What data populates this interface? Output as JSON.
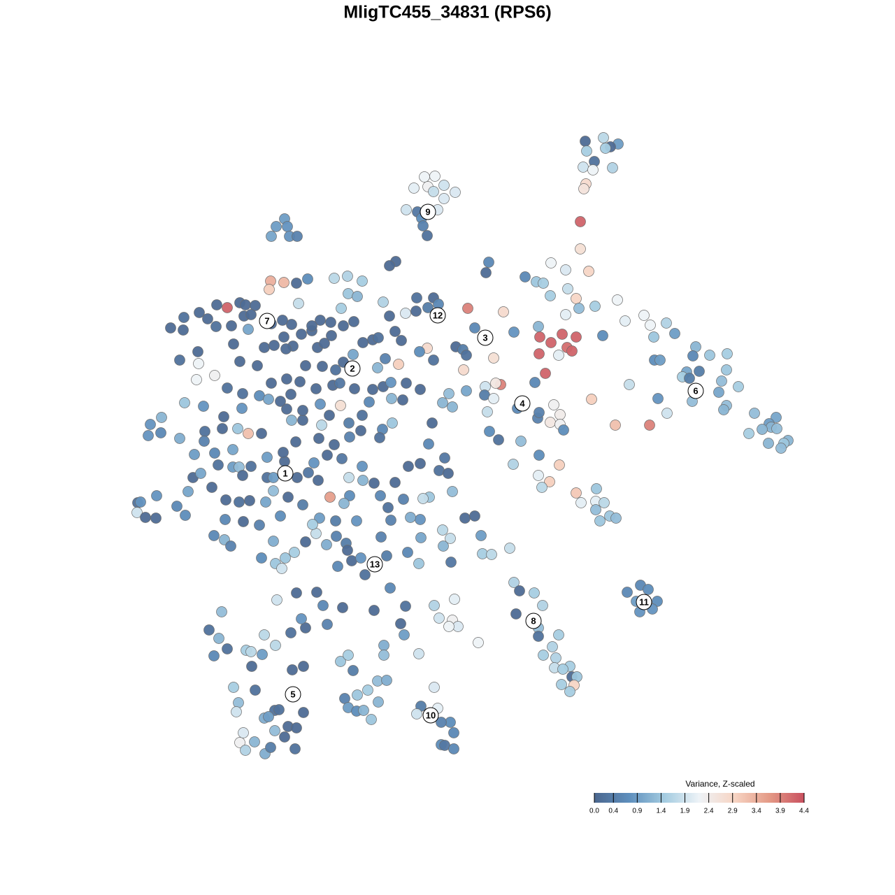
{
  "chart_data": {
    "type": "scatter",
    "title": "MligTC455_34831 (RPS6)",
    "xlim": [
      180,
      1140
    ],
    "ylim": [
      1090,
      190
    ],
    "colorbar_label": "Variance, Z-scaled",
    "clim": [
      0,
      4.4
    ],
    "cticks": [
      {
        "value": 0,
        "label": "0.0"
      },
      0.4,
      0.9,
      1.4,
      1.9,
      2.4,
      2.9,
      3.4,
      3.9,
      4.4
    ],
    "colormap": [
      "#4b678f",
      "#5e8fbd",
      "#a3cbe0",
      "#eef3f7",
      "#f7d5c4",
      "#e49a86",
      "#c9505f"
    ],
    "annotations": [
      {
        "text": "1",
        "x": 408,
        "y": 677
      },
      {
        "text": "2",
        "x": 504,
        "y": 527
      },
      {
        "text": "3",
        "x": 694,
        "y": 483
      },
      {
        "text": "4",
        "x": 747,
        "y": 577
      },
      {
        "text": "5",
        "x": 419,
        "y": 993
      },
      {
        "text": "6",
        "x": 995,
        "y": 559
      },
      {
        "text": "7",
        "x": 382,
        "y": 459
      },
      {
        "text": "8",
        "x": 763,
        "y": 888
      },
      {
        "text": "9",
        "x": 612,
        "y": 303
      },
      {
        "text": "10",
        "x": 616,
        "y": 1023
      },
      {
        "text": "11",
        "x": 921,
        "y": 861
      },
      {
        "text": "12",
        "x": 626,
        "y": 451
      },
      {
        "text": "13",
        "x": 536,
        "y": 807
      }
    ],
    "x": [
      607,
      622,
      592,
      612,
      635,
      651,
      620,
      635,
      581,
      597,
      626,
      603,
      605,
      611,
      863,
      837,
      884,
      873,
      866,
      839,
      850,
      834,
      848,
      876,
      838,
      835,
      830,
      830,
      842,
      407,
      395,
      411,
      388,
      414,
      425,
      566,
      557,
      699,
      695,
      788,
      809,
      751,
      767,
      777,
      812,
      787,
      824,
      883,
      851,
      828,
      809,
      669,
      720,
      596,
      620,
      627,
      612,
      595,
      580,
      548,
      679,
      735,
      770,
      804,
      772,
      824,
      788,
      811,
      771,
      818,
      799,
      780,
      706,
      663,
      611,
      600,
      620,
      652,
      662,
      667,
      716,
      709,
      694,
      693,
      706,
      765,
      667,
      642,
      633,
      647,
      697,
      740,
      769,
      771,
      792,
      801,
      787,
      801,
      806,
      846,
      880,
      929,
      745,
      713,
      700,
      734,
      771,
      800,
      770,
      786,
      775,
      824,
      853,
      831,
      852,
      864,
      852,
      872,
      881,
      858,
      894,
      930,
      921,
      953,
      965,
      935,
      862,
      995,
      1015,
      1040,
      991,
      936,
      944,
      982,
      1000,
      1039,
      976,
      986,
      1032,
      1056,
      1028,
      900,
      941,
      990,
      1039,
      1035,
      954,
      1079,
      1110,
      1100,
      1103,
      1090,
      1111,
      1071,
      1127,
      1121,
      1099,
      1117,
      916,
      927,
      897,
      910,
      940,
      933,
      915,
      735,
      743,
      764,
      776,
      738,
      770,
      770,
      799,
      790,
      777,
      795,
      815,
      793,
      805,
      818,
      825,
      803,
      821,
      815,
      684,
      621,
      602,
      626,
      596,
      644,
      631,
      649,
      631,
      636,
      649,
      396,
      424,
      453,
      462,
      490,
      535,
      317,
      299,
      313,
      325,
      306,
      352,
      359,
      375,
      378,
      394,
      416,
      437,
      431,
      468,
      418,
      434,
      360,
      334,
      365,
      341,
      338,
      378,
      393,
      384,
      399,
      434,
      412,
      424,
      393,
      407,
      364,
      343,
      348,
      351,
      379,
      387,
      422,
      487,
      498,
      505,
      540,
      553,
      511,
      526,
      541,
      493,
      498,
      510,
      520,
      531,
      549,
      549,
      573,
      578,
      599,
      580,
      558,
      621,
      628,
      650,
      647,
      655,
      642,
      325,
      343,
      351,
      387,
      406,
      385,
      424,
      440,
      478,
      497,
      518,
      498,
      511,
      488,
      427,
      310,
      285,
      263,
      244,
      262,
      297,
      309,
      331,
      349,
      355,
      365,
      359,
      334,
      378,
      392,
      283,
      257,
      284,
      281,
      307,
      343,
      368,
      388,
      410,
      325,
      347,
      371,
      384,
      264,
      291,
      346,
      320,
      215,
      231,
      212,
      230,
      257,
      293,
      318,
      340,
      355,
      374,
      292,
      278,
      307,
      333,
      312,
      333,
      342,
      276,
      287,
      347,
      303,
      269,
      224,
      197,
      201,
      196,
      208,
      223,
      253,
      265,
      323,
      342,
      357,
      380,
      322,
      348,
      371,
      306,
      321,
      330,
      391,
      374,
      394,
      403,
      408,
      421,
      437,
      452,
      467,
      481,
      495,
      497,
      503,
      483,
      516,
      522,
      553,
      545,
      583,
      599,
      602,
      645,
      634,
      644,
      633,
      690,
      703,
      729,
      688,
      665,
      679,
      601,
      587,
      559,
      510,
      480,
      457,
      447,
      500,
      492,
      472,
      433,
      412,
      401,
      391,
      382,
      391,
      407,
      425,
      441,
      455,
      449,
      468,
      489,
      518,
      519,
      499,
      535,
      565,
      584,
      601,
      628,
      641,
      647,
      614,
      605,
      577,
      544,
      555,
      636,
      613,
      618,
      601,
      576,
      561,
      547,
      543,
      516,
      500,
      478,
      456,
      423,
      405,
      382,
      359,
      417,
      433,
      460,
      471,
      499,
      518,
      528,
      548,
      559,
      581,
      560,
      533,
      507,
      487,
      458,
      433,
      410,
      401,
      416,
      452,
      476,
      486,
      429,
      437,
      461,
      480,
      540,
      551,
      570,
      533,
      541,
      519,
      505,
      491,
      454,
      419,
      409,
      406,
      431,
      446,
      458,
      473,
      491,
      506,
      446,
      417,
      404,
      388,
      565,
      574,
      557,
      474,
      464
    ],
    "y": [
      253,
      252,
      269,
      267,
      265,
      275,
      274,
      284,
      300,
      303,
      300,
      312,
      323,
      337,
      197,
      202,
      206,
      210,
      212,
      216,
      231,
      239,
      243,
      240,
      263,
      270,
      317,
      356,
      388,
      313,
      324,
      324,
      338,
      338,
      338,
      374,
      380,
      375,
      390,
      376,
      386,
      396,
      403,
      405,
      413,
      423,
      427,
      429,
      438,
      441,
      450,
      441,
      446,
      426,
      426,
      435,
      440,
      445,
      448,
      432,
      469,
      475,
      467,
      478,
      482,
      482,
      490,
      497,
      506,
      502,
      508,
      534,
      512,
      529,
      498,
      503,
      515,
      496,
      500,
      508,
      550,
      548,
      553,
      565,
      570,
      547,
      559,
      563,
      576,
      582,
      589,
      584,
      598,
      590,
      579,
      593,
      604,
      607,
      615,
      571,
      608,
      608,
      631,
      629,
      617,
      664,
      651,
      665,
      680,
      689,
      697,
      705,
      699,
      719,
      717,
      719,
      729,
      738,
      741,
      745,
      459,
      465,
      451,
      462,
      477,
      482,
      480,
      496,
      508,
      506,
      509,
      515,
      515,
      532,
      531,
      529,
      539,
      541,
      545,
      553,
      561,
      550,
      570,
      574,
      580,
      586,
      591,
      591,
      597,
      606,
      611,
      614,
      613,
      620,
      630,
      634,
      634,
      641,
      837,
      843,
      847,
      860,
      860,
      871,
      875,
      833,
      845,
      848,
      866,
      878,
      898,
      910,
      908,
      925,
      937,
      941,
      953,
      955,
      957,
      968,
      968,
      979,
      980,
      989,
      919,
      983,
      1010,
      1013,
      1021,
      1033,
      1033,
      1048,
      1065,
      1066,
      1071,
      858,
      848,
      847,
      866,
      869,
      873,
      875,
      901,
      913,
      928,
      938,
      930,
      932,
      936,
      908,
      923,
      905,
      898,
      885,
      893,
      958,
      953,
      953,
      983,
      987,
      1005,
      1018,
      1027,
      1016,
      1025,
      1015,
      1019,
      1039,
      1041,
      1045,
      1054,
      1061,
      1062,
      1048,
      1073,
      1078,
      1069,
      1071,
      946,
      937,
      959,
      974,
      973,
      994,
      987,
      1004,
      999,
      1012,
      1017,
      1016,
      1029,
      923,
      937,
      892,
      908,
      935,
      867,
      841,
      866,
      884,
      857,
      887,
      896,
      896,
      440,
      433,
      436,
      402,
      404,
      414,
      405,
      399,
      398,
      395,
      402,
      420,
      424,
      441,
      434,
      436,
      447,
      454,
      469,
      472,
      456,
      467,
      466,
      452,
      471,
      437,
      450,
      492,
      497,
      494,
      503,
      515,
      520,
      543,
      537,
      517,
      523,
      548,
      542,
      555,
      563,
      566,
      571,
      576,
      581,
      584,
      596,
      607,
      597,
      623,
      619,
      627,
      617,
      613,
      613,
      620,
      620,
      631,
      650,
      648,
      643,
      665,
      668,
      668,
      683,
      677,
      680,
      697,
      703,
      709,
      719,
      718,
      733,
      740,
      741,
      724,
      737,
      715,
      718,
      716,
      718,
      743,
      746,
      751,
      766,
      772,
      781,
      774,
      798,
      806,
      813,
      798,
      790,
      775,
      763,
      779,
      767,
      777,
      787,
      802,
      810,
      798,
      822,
      795,
      768,
      790,
      806,
      769,
      804,
      781,
      770,
      758,
      792,
      793,
      784,
      766,
      741,
      738,
      743,
      740,
      744,
      745,
      745,
      741,
      750,
      709,
      720,
      711,
      722,
      711,
      738,
      702,
      683,
      683,
      660,
      683,
      676,
      687,
      662,
      651,
      656,
      667,
      687,
      683,
      691,
      690,
      667,
      663,
      673,
      677,
      703,
      711,
      713,
      714,
      709,
      726,
      655,
      635,
      605,
      557,
      572,
      605,
      614,
      626,
      616,
      625,
      636,
      627,
      632,
      647,
      654,
      667,
      601,
      601,
      608,
      594,
      605,
      594,
      575,
      553,
      547,
      548,
      570,
      557,
      556,
      580,
      578,
      587,
      585,
      574,
      564,
      556,
      551,
      548,
      546,
      523,
      524,
      529,
      526,
      513,
      521,
      486,
      483,
      490,
      507,
      518,
      497,
      495,
      499,
      482,
      478,
      473,
      458,
      461,
      466,
      460,
      466,
      464,
      458,
      463,
      474,
      487,
      452,
      480,
      491
    ],
    "z": [
      2.2,
      2.2,
      2.1,
      2.3,
      1.9,
      2.0,
      1.8,
      2.0,
      1.9,
      0.3,
      2.0,
      0.7,
      0.5,
      0.2,
      1.7,
      0.1,
      0.9,
      0.1,
      1.5,
      1.5,
      0.2,
      1.9,
      2.2,
      1.6,
      2.8,
      2.6,
      4.2,
      2.7,
      2.9,
      0.9,
      0.9,
      0.8,
      1.0,
      0.8,
      0.5,
      0.1,
      0.1,
      0.6,
      0.1,
      2.2,
      2.0,
      0.6,
      1.4,
      1.5,
      1.8,
      1.5,
      2.9,
      2.2,
      1.5,
      1.3,
      2.1,
      3.9,
      2.8,
      0.2,
      0.1,
      0.6,
      0.4,
      0.1,
      2.0,
      1.6,
      0.6,
      0.8,
      1.2,
      4.2,
      4.2,
      4.2,
      4.2,
      4.1,
      4.2,
      4.2,
      2.1,
      4.2,
      2.7,
      2.8,
      2.8,
      0.7,
      0.2,
      0.1,
      0.4,
      0.2,
      3.9,
      2.5,
      1.9,
      0.4,
      2.1,
      0.6,
      1.0,
      1.3,
      1.2,
      1.2,
      1.8,
      0.6,
      0.5,
      0.5,
      2.3,
      2.4,
      2.5,
      2.3,
      0.7,
      3.0,
      3.2,
      3.9,
      1.3,
      0.2,
      0.7,
      1.6,
      0.7,
      3.0,
      2.1,
      3.0,
      1.7,
      3.1,
      1.4,
      2.1,
      2.1,
      1.7,
      1.3,
      1.4,
      1.3,
      1.4,
      2.1,
      2.2,
      2.2,
      1.6,
      0.9,
      1.4,
      0.7,
      1.2,
      1.4,
      1.5,
      0.6,
      0.7,
      0.9,
      1.0,
      0.4,
      1.4,
      1.5,
      0.4,
      1.3,
      1.5,
      1.0,
      1.8,
      0.8,
      1.3,
      1.3,
      1.2,
      1.9,
      1.3,
      1.0,
      0.9,
      1.2,
      1.2,
      1.3,
      1.5,
      1.2,
      1.4,
      1.2,
      1.3,
      0.6,
      0.7,
      0.6,
      0.9,
      0.7,
      0.8,
      0.8,
      1.6,
      0.1,
      1.5,
      1.6,
      0.1,
      1.3,
      0.2,
      1.5,
      1.6,
      1.5,
      1.6,
      1.5,
      1.8,
      1.5,
      0.1,
      1.4,
      1.5,
      2.9,
      1.5,
      2.2,
      2.0,
      0.4,
      2.1,
      1.9,
      0.7,
      0.5,
      0.6,
      0.7,
      0.3,
      0.6,
      1.9,
      0.1,
      0.1,
      0.6,
      0.1,
      0.1,
      1.3,
      0.2,
      1.2,
      0.2,
      0.6,
      1.5,
      1.7,
      0.9,
      1.7,
      1.7,
      0.2,
      0.1,
      0.8,
      0.5,
      0.1,
      0.1,
      0.1,
      1.5,
      0.2,
      1.3,
      1.9,
      1.1,
      0.2,
      0.9,
      0.2,
      0.1,
      0.1,
      0.1,
      1.3,
      0.1,
      1.2,
      2.3,
      2.0,
      1.6,
      1.1,
      0.4,
      0.2,
      1.4,
      1.5,
      0.4,
      1.3,
      1.1,
      1.4,
      1.5,
      1.2,
      0.5,
      0.9,
      0.7,
      1.2,
      1.4,
      1.1,
      1.3,
      0.1,
      0.9,
      1.9,
      0.2,
      0.6,
      1.6,
      1.9,
      2.1,
      2.3,
      2.0,
      2.2,
      4.2,
      0.1,
      0.1,
      3.4,
      3.3,
      3.0,
      0.1,
      0.7,
      1.7,
      1.6,
      1.5,
      1.4,
      1.2,
      1.5,
      1.8,
      0.1,
      0.1,
      0.2,
      0.1,
      0.1,
      0.1,
      0.2,
      0.1,
      0.1,
      1.0,
      0.1,
      0.1,
      0.1,
      0.1,
      0.1,
      0.1,
      0.2,
      2.2,
      2.2,
      2.3,
      0.1,
      0.1,
      0.1,
      0.1,
      0.2,
      0.2,
      0.7,
      1.0,
      1.4,
      0.8,
      0.8,
      0.1,
      0.8,
      1.2,
      0.8,
      0.6,
      1.1,
      0.2,
      0.1,
      1.4,
      3.2,
      0.1,
      0.5,
      0.9,
      0.6,
      1.0,
      0.2,
      0.9,
      1.3,
      0.1,
      1.0,
      0.1,
      0.1,
      1.0,
      0.8,
      0.2,
      0.8,
      1.9,
      0.1,
      0.1,
      0.6,
      0.7,
      0.1,
      0.2,
      0.1,
      1.0,
      0.6,
      0.1,
      0.5,
      0.6,
      1.2,
      0.5,
      1.1,
      0.7,
      1.4,
      1.9,
      1.4,
      1.5,
      0.1,
      1.8,
      1.1,
      0.5,
      0.4,
      0.1,
      0.1,
      0.6,
      0.8,
      0.2,
      0.4,
      0.5,
      0.6,
      1.4,
      1.0,
      0.3,
      1.2,
      1.8,
      1.7,
      1.5,
      1.7,
      1.8,
      0.9,
      0.1,
      0.1,
      0.8,
      1.1,
      0.5,
      0.8,
      0.4,
      0.9,
      1.5,
      0.7,
      1.2,
      3.6,
      0.4,
      0.1,
      0.7,
      1.3,
      0.2,
      0.9,
      0.1,
      0.1,
      0.3,
      0.1,
      0.8,
      0.1,
      0.3,
      0.8,
      1.2,
      1.8,
      0.1,
      0.1,
      0.1,
      0.1,
      0.2,
      0.1,
      1.3,
      1.4,
      1.8,
      0.5,
      0.6,
      0.2,
      0.3,
      0.6,
      0.1,
      0.1,
      0.1,
      1.4,
      0.6,
      0.2,
      0.1,
      0.5,
      0.1,
      0.1,
      0.1,
      0.1,
      0.9,
      0.2,
      1.2,
      0.1,
      1.7,
      0.1,
      0.4,
      0.2,
      0.6,
      0.1,
      0.8,
      0.1,
      1.2,
      0.1,
      0.1,
      2.7,
      0.8,
      0.1,
      0.1,
      0.1,
      0.1,
      0.1,
      0.1,
      0.3,
      0.1,
      0.1,
      0.1,
      0.2,
      1.2,
      0.5,
      3.0,
      0.1,
      0.2,
      0.1,
      1.0,
      0.1,
      0.1,
      0.1,
      0.1,
      0.1,
      0.1,
      0.1,
      0.1,
      0.1,
      0.1,
      0.1,
      0.1,
      0.1,
      0.1,
      0.1,
      0.1,
      0.1,
      0.1,
      0.1,
      0.1
    ]
  }
}
